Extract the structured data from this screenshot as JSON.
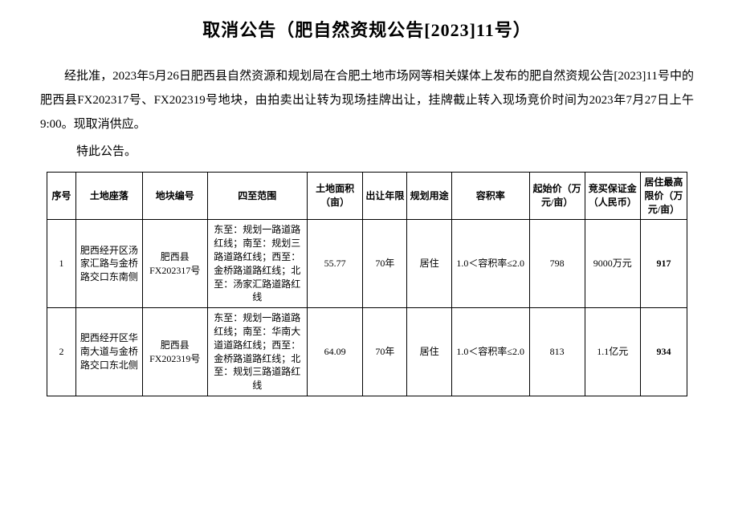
{
  "title": "取消公告（肥自然资规公告[2023]11号）",
  "paragraph1": "经批准，2023年5月26日肥西县自然资源和规划局在合肥土地市场网等相关媒体上发布的肥自然资规公告[2023]11号中的肥西县FX202317号、FX202319号地块，由拍卖出让转为现场挂牌出让，挂牌截止转入现场竞价时间为2023年7月27日上午9:00。现取消供应。",
  "closing": "特此公告。",
  "table": {
    "headers": {
      "seq": "序号",
      "location": "土地座落",
      "block": "地块编号",
      "range": "四至范围",
      "area": "土地面积（亩）",
      "term": "出让年限",
      "use": "规划用途",
      "ratio": "容积率",
      "price": "起始价（万元/亩）",
      "deposit": "竞买保证金（人民币）",
      "max": "居住最高限价（万元/亩）"
    },
    "rows": [
      {
        "seq": "1",
        "location": "肥西经开区汤家汇路与金桥路交口东南侧",
        "block": "肥西县FX202317号",
        "range": "东至：规划一路道路红线；南至：规划三路道路红线；西至：金桥路道路红线；北至：汤家汇路道路红线",
        "area": "55.77",
        "term": "70年",
        "use": "居住",
        "ratio": "1.0＜容积率≤2.0",
        "price": "798",
        "deposit": "9000万元",
        "max": "917"
      },
      {
        "seq": "2",
        "location": "肥西经开区华南大道与金桥路交口东北侧",
        "block": "肥西县FX202319号",
        "range": "东至：规划一路道路红线；南至：华南大道道路红线；西至：金桥路道路红线；北至：规划三路道路红线",
        "area": "64.09",
        "term": "70年",
        "use": "居住",
        "ratio": "1.0＜容积率≤2.0",
        "price": "813",
        "deposit": "1.1亿元",
        "max": "934"
      }
    ]
  }
}
